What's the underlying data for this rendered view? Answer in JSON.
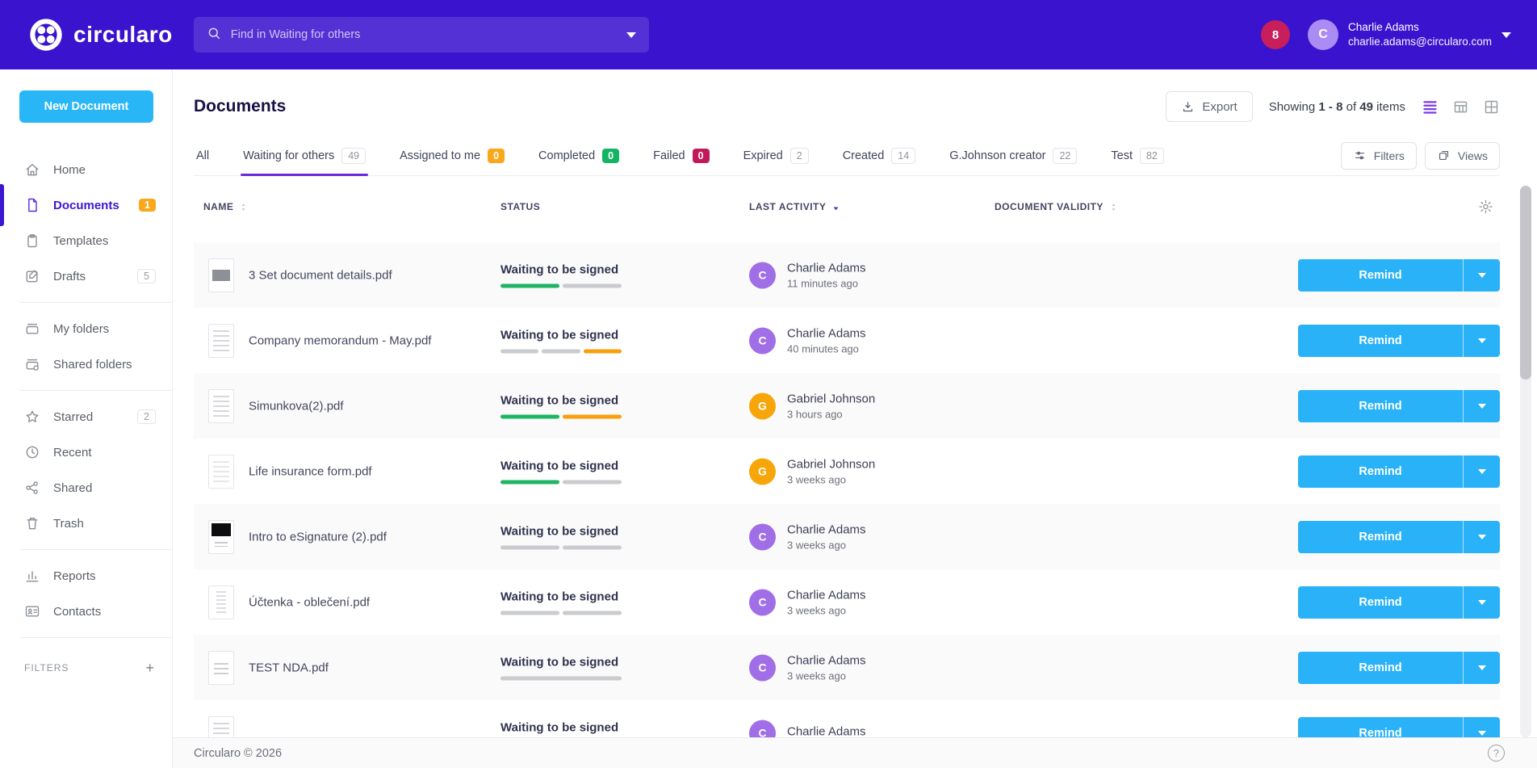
{
  "colors": {
    "topbar": "#3a13ce",
    "accent_purple": "#6d28d9",
    "sidebar_active": "#3d16d1",
    "primary_blue": "#29b6f6",
    "remind_blue": "#29b2f7",
    "badge_orange": "#f9a81b",
    "badge_green": "#14b465",
    "badge_crimson": "#c2195b",
    "notification_red": "#c81e5b",
    "avatar_topbar": "#ab8cf5",
    "avatar_purple": "#a06ee6",
    "avatar_orange": "#f7a60a",
    "progress_green": "#1eb564",
    "progress_orange": "#f9a00e",
    "progress_gray": "#c9cbce"
  },
  "topbar": {
    "logo_text": "circularo",
    "search_placeholder": "Find in Waiting for others",
    "notification_count": "8",
    "user": {
      "initial": "C",
      "name": "Charlie Adams",
      "email": "charlie.adams@circularo.com"
    }
  },
  "sidebar": {
    "new_document_label": "New Document",
    "sections": [
      [
        {
          "label": "Home",
          "icon": "home"
        },
        {
          "label": "Documents",
          "icon": "document",
          "active": true,
          "badge": {
            "value": "1",
            "style": "solid-orange"
          }
        },
        {
          "label": "Templates",
          "icon": "template"
        },
        {
          "label": "Drafts",
          "icon": "draft",
          "badge": {
            "value": "5",
            "style": "outline"
          }
        }
      ],
      [
        {
          "label": "My folders",
          "icon": "my-folders"
        },
        {
          "label": "Shared folders",
          "icon": "shared-folders"
        }
      ],
      [
        {
          "label": "Starred",
          "icon": "star",
          "badge": {
            "value": "2",
            "style": "outline"
          }
        },
        {
          "label": "Recent",
          "icon": "clock"
        },
        {
          "label": "Shared",
          "icon": "share"
        },
        {
          "label": "Trash",
          "icon": "trash"
        }
      ],
      [
        {
          "label": "Reports",
          "icon": "reports"
        },
        {
          "label": "Contacts",
          "icon": "contacts"
        }
      ]
    ],
    "filters_label": "FILTERS"
  },
  "header": {
    "title": "Documents",
    "export_label": "Export",
    "showing": {
      "prefix": "Showing",
      "range": "1 - 8",
      "of": "of",
      "total": "49",
      "suffix": "items"
    }
  },
  "tabs": [
    {
      "label": "All"
    },
    {
      "label": "Waiting for others",
      "count": "49",
      "style": "outline",
      "active": true
    },
    {
      "label": "Assigned to me",
      "count": "0",
      "style": "orange"
    },
    {
      "label": "Completed",
      "count": "0",
      "style": "green"
    },
    {
      "label": "Failed",
      "count": "0",
      "style": "crimson"
    },
    {
      "label": "Expired",
      "count": "2",
      "style": "outline"
    },
    {
      "label": "Created",
      "count": "14",
      "style": "outline"
    },
    {
      "label": "G.Johnson creator",
      "count": "22",
      "style": "outline"
    },
    {
      "label": "Test",
      "count": "82",
      "style": "outline"
    }
  ],
  "filter_buttons": {
    "filters": "Filters",
    "views": "Views"
  },
  "table": {
    "columns": [
      {
        "label": "NAME",
        "sort": "both"
      },
      {
        "label": "STATUS",
        "sort": "none"
      },
      {
        "label": "LAST ACTIVITY",
        "sort": "desc"
      },
      {
        "label": "DOCUMENT VALIDITY",
        "sort": "both"
      }
    ],
    "remind_label": "Remind",
    "rows": [
      {
        "name": "3 Set document details.pdf",
        "thumb": "image",
        "status": "Waiting to be signed",
        "progress": [
          "green",
          "gray"
        ],
        "actor": "Charlie Adams",
        "initial": "C",
        "avatar_color": "purple",
        "time": "11 minutes ago"
      },
      {
        "name": "Company memorandum - May.pdf",
        "thumb": "text",
        "status": "Waiting to be signed",
        "progress": [
          "gray",
          "gray",
          "orange"
        ],
        "actor": "Charlie Adams",
        "initial": "C",
        "avatar_color": "purple",
        "time": "40 minutes ago"
      },
      {
        "name": "Simunkova(2).pdf",
        "thumb": "text",
        "status": "Waiting to be signed",
        "progress": [
          "green",
          "orange"
        ],
        "actor": "Gabriel Johnson",
        "initial": "G",
        "avatar_color": "orange",
        "time": "3 hours ago"
      },
      {
        "name": "Life insurance form.pdf",
        "thumb": "form",
        "status": "Waiting to be signed",
        "progress": [
          "green",
          "gray"
        ],
        "actor": "Gabriel Johnson",
        "initial": "G",
        "avatar_color": "orange",
        "time": "3 weeks ago"
      },
      {
        "name": "Intro to eSignature (2).pdf",
        "thumb": "black-top",
        "status": "Waiting to be signed",
        "progress": [
          "gray",
          "gray"
        ],
        "actor": "Charlie Adams",
        "initial": "C",
        "avatar_color": "purple",
        "time": "3 weeks ago"
      },
      {
        "name": "Účtenka - oblečení.pdf",
        "thumb": "receipt",
        "status": "Waiting to be signed",
        "progress": [
          "gray",
          "gray"
        ],
        "actor": "Charlie Adams",
        "initial": "C",
        "avatar_color": "purple",
        "time": "3 weeks ago"
      },
      {
        "name": "TEST NDA.pdf",
        "thumb": "nda",
        "status": "Waiting to be signed",
        "progress": [
          "gray"
        ],
        "actor": "Charlie Adams",
        "initial": "C",
        "avatar_color": "purple",
        "time": "3 weeks ago"
      },
      {
        "name": "",
        "thumb": "text",
        "status": "Waiting to be signed",
        "progress": [
          "gray"
        ],
        "actor": "Charlie Adams",
        "initial": "C",
        "avatar_color": "purple",
        "time": ""
      }
    ]
  },
  "footer": {
    "copyright": "Circularo © 2026",
    "help_label": "?"
  }
}
